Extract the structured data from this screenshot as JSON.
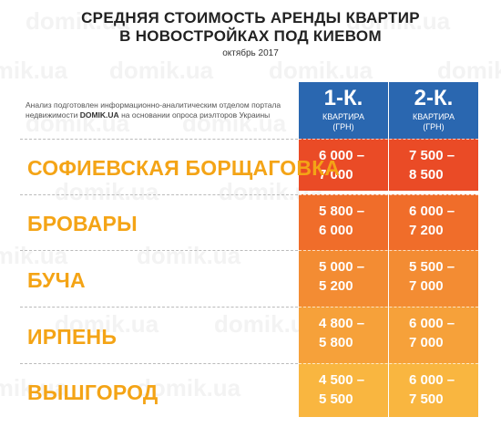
{
  "title_line1": "СРЕДНЯЯ СТОИМОСТЬ АРЕНДЫ КВАРТИР",
  "title_line2": "В НОВОСТРОЙКАХ ПОД КИЕВОМ",
  "date": "октябрь 2017",
  "watermark": "domik.ua",
  "note_line1": "Анализ подготовлен информационно-аналитическим отделом портала",
  "note_prefix": "недвижимости ",
  "note_brand": "DOMIK.UA",
  "note_suffix": " на основании опроса риэлторов Украины",
  "columns": [
    {
      "big": "1-К.",
      "small1": "КВАРТИРА",
      "small2": "(ГРН)"
    },
    {
      "big": "2-К.",
      "small1": "КВАРТИРА",
      "small2": "(ГРН)"
    }
  ],
  "rows": [
    {
      "city": "СОФИЕВСКАЯ БОРЩАГОВКА",
      "one_room": "6 000 –\n7 000",
      "two_room": "7 500 –\n8 500",
      "color": "#ea4b26"
    },
    {
      "city": "БРОВАРЫ",
      "one_room": "5 800 –\n6 000",
      "two_room": "6 000 –\n7 200",
      "color": "#f06d2a"
    },
    {
      "city": "БУЧА",
      "one_room": "5 000 –\n5 200",
      "two_room": "5 500 –\n7 000",
      "color": "#f38c33"
    },
    {
      "city": "ИРПЕНЬ",
      "one_room": "4 800 –\n5 800",
      "two_room": "6 000 –\n7 000",
      "color": "#f6a13a"
    },
    {
      "city": "ВЫШГОРОД",
      "one_room": "4 500 –\n5 500",
      "two_room": "6 000 –\n7 500",
      "color": "#f9b640"
    }
  ],
  "header_color": "#2a67b0",
  "label_color": "#f4a416"
}
